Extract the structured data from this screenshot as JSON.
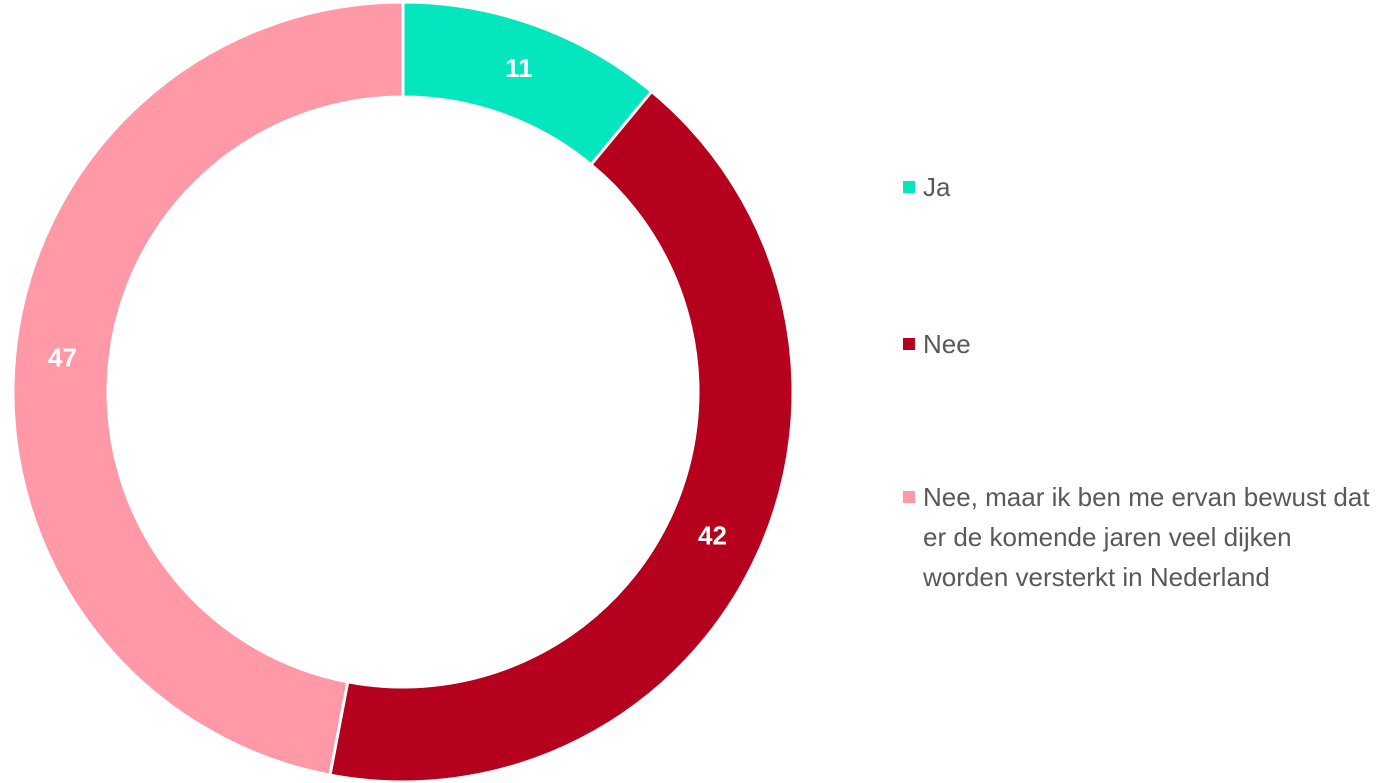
{
  "chart_data": {
    "type": "donut",
    "categories": [
      "Ja",
      "Nee",
      "Nee, maar ik ben me ervan bewust dat er de komende jaren veel dijken worden versterkt in Nederland"
    ],
    "values": [
      11,
      42,
      47
    ],
    "colors": [
      "#03e6be",
      "#b5001e",
      "#ff99a8"
    ],
    "legend": "right"
  }
}
